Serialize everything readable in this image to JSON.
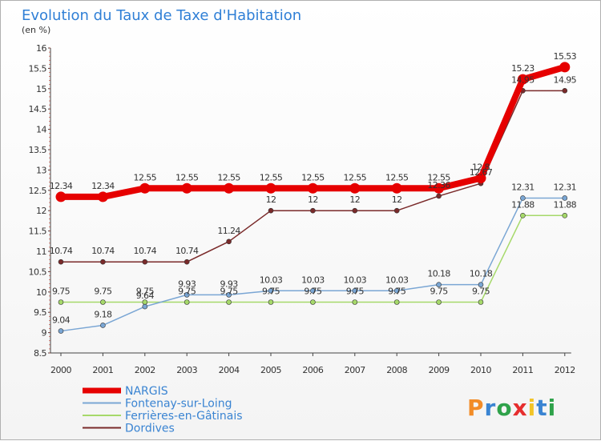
{
  "chart_data": {
    "type": "line",
    "title": "Evolution du Taux de Taxe d'Habitation",
    "subtitle": "(en %)",
    "x": [
      "2000",
      "2001",
      "2002",
      "2003",
      "2004",
      "2005",
      "2006",
      "2007",
      "2008",
      "2009",
      "2010",
      "2011",
      "2012"
    ],
    "ylim": [
      8.5,
      16
    ],
    "yticks": [
      "8.5",
      "9",
      "9.5",
      "10",
      "10.5",
      "11",
      "11.5",
      "12",
      "12.5",
      "13",
      "13.5",
      "14",
      "14.5",
      "15",
      "15.5",
      "16"
    ],
    "grid": false,
    "legend_position": "bottom-left",
    "series": [
      {
        "name": "NARGIS",
        "color": "#e60000",
        "labels": [
          "12.34",
          "12.34",
          "12.55",
          "12.55",
          "12.55",
          "12.55",
          "12.55",
          "12.55",
          "12.55",
          "12.55",
          "12.8",
          "15.23",
          "15.53"
        ],
        "values": [
          12.34,
          12.34,
          12.55,
          12.55,
          12.55,
          12.55,
          12.55,
          12.55,
          12.55,
          12.55,
          12.8,
          15.23,
          15.53
        ]
      },
      {
        "name": "Fontenay-sur-Loing",
        "color": "#7aa6d4",
        "labels": [
          "9.04",
          "9.18",
          "9.64",
          "9.93",
          "9.93",
          "10.03",
          "10.03",
          "10.03",
          "10.03",
          "10.18",
          "10.18",
          "12.31",
          "12.31"
        ],
        "values": [
          9.04,
          9.18,
          9.64,
          9.93,
          9.93,
          10.03,
          10.03,
          10.03,
          10.03,
          10.18,
          10.18,
          12.31,
          12.31
        ]
      },
      {
        "name": "Ferrières-en-Gâtinais",
        "color": "#a6d96a",
        "labels": [
          "9.75",
          "9.75",
          "9.75",
          "9.75",
          "9.75",
          "9.75",
          "9.75",
          "9.75",
          "9.75",
          "9.75",
          "9.75",
          "11.88",
          "11.88"
        ],
        "values": [
          9.75,
          9.75,
          9.75,
          9.75,
          9.75,
          9.75,
          9.75,
          9.75,
          9.75,
          9.75,
          9.75,
          11.88,
          11.88
        ]
      },
      {
        "name": "Dordives",
        "color": "#7a2a2a",
        "labels": [
          "10.74",
          "10.74",
          "10.74",
          "10.74",
          "11.24",
          "12",
          "12",
          "12",
          "12",
          "12.36",
          "12.67",
          "14.95",
          "14.95"
        ],
        "values": [
          10.74,
          10.74,
          10.74,
          10.74,
          11.24,
          12,
          12,
          12,
          12,
          12.36,
          12.67,
          14.95,
          14.95
        ]
      }
    ]
  },
  "brand": {
    "text": "Proxiti"
  }
}
